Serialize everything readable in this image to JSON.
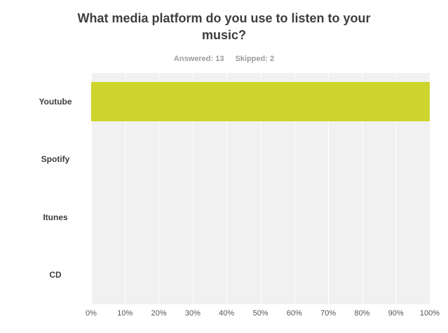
{
  "chart": {
    "title": "What media platform do you use to listen to your music?",
    "answered_label": "Answered: 13",
    "skipped_label": "Skipped: 2"
  },
  "chart_data": {
    "type": "bar",
    "orientation": "horizontal",
    "title": "What media platform do you use to listen to your music?",
    "answered": 13,
    "skipped": 2,
    "categories": [
      "Youtube",
      "Spotify",
      "Itunes",
      "CD"
    ],
    "values": [
      100,
      0,
      0,
      0
    ],
    "value_unit": "%",
    "xlim": [
      0,
      100
    ],
    "x_ticks": [
      "0%",
      "10%",
      "20%",
      "30%",
      "40%",
      "50%",
      "60%",
      "70%",
      "80%",
      "90%",
      "100%"
    ],
    "xlabel": "",
    "ylabel": "",
    "grid": true,
    "legend": "none",
    "bar_color": "#cdd42c",
    "plot_background": "#f1f1f1",
    "gridline_color": "#ffffff"
  }
}
